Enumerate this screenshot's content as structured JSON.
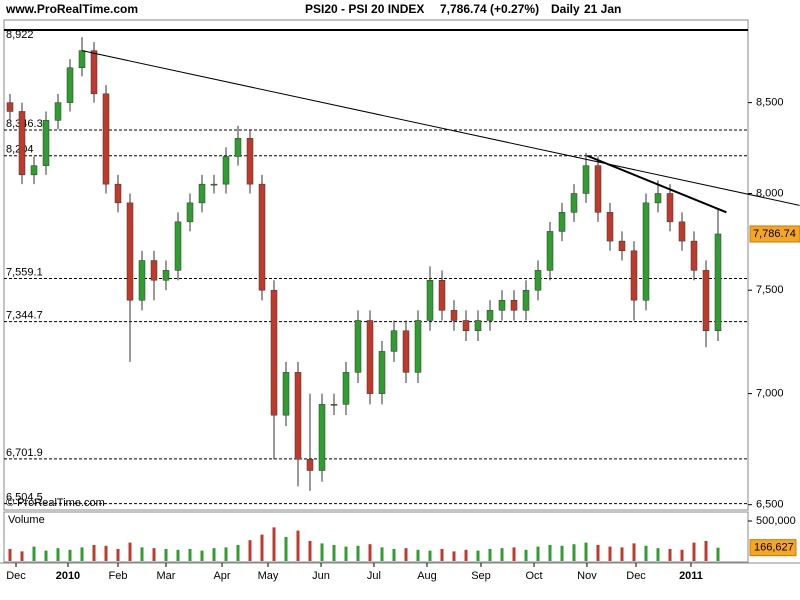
{
  "header": {
    "site": "www.ProRealTime.com",
    "symbol": "PSI20 - PSI 20 INDEX",
    "quote": "7,786.74 (+0.27%)",
    "period": "Daily",
    "date": "21 Jan"
  },
  "chart_data": [
    {
      "type": "candlestick",
      "log_scale": true,
      "watermark": "© ProRealTime.com",
      "up_color": "#2e9e2e",
      "down_color": "#c0392b",
      "xlim": [
        0,
        62
      ],
      "xticks": [
        {
          "value": 1.0,
          "label": "Dec"
        },
        {
          "value": 5.33,
          "label": "2010"
        },
        {
          "value": 9.5,
          "label": "Feb"
        },
        {
          "value": 13.5,
          "label": "Mar"
        },
        {
          "value": 18.17,
          "label": "Apr"
        },
        {
          "value": 22.0,
          "label": "May"
        },
        {
          "value": 26.42,
          "label": "Jun"
        },
        {
          "value": 30.83,
          "label": "Jul"
        },
        {
          "value": 35.25,
          "label": "Aug"
        },
        {
          "value": 39.75,
          "label": "Sep"
        },
        {
          "value": 44.17,
          "label": "Oct"
        },
        {
          "value": 48.58,
          "label": "Nov"
        },
        {
          "value": 52.67,
          "label": "Dec"
        },
        {
          "value": 57.25,
          "label": "2011"
        }
      ],
      "ylim": [
        6490,
        8922
      ],
      "yticks": [
        {
          "value": 6500,
          "label": "6,500"
        },
        {
          "value": 7000,
          "label": "7,000"
        },
        {
          "value": 7500,
          "label": "7,500"
        },
        {
          "value": 8000,
          "label": "8,000"
        },
        {
          "value": 8500,
          "label": "8,500"
        }
      ],
      "levels": [
        {
          "value": 8922,
          "label": "8,922"
        },
        {
          "value": 8346.3,
          "label": "8,346.3"
        },
        {
          "value": 8204,
          "label": "8,204"
        },
        {
          "value": 7559.1,
          "label": "7,559.1"
        },
        {
          "value": 7344.7,
          "label": "7,344.7"
        },
        {
          "value": 6701.9,
          "label": "6,701.9"
        },
        {
          "value": 6504.5,
          "label": "6,504.5"
        }
      ],
      "last": {
        "value": 7786.74,
        "label": "7,786.74"
      },
      "trendlines": [
        {
          "x": [
            6.5,
            66.3
          ],
          "y": [
            8800,
            7937
          ]
        },
        {
          "x": [
            48.6,
            60.2
          ],
          "y": [
            8204,
            7900
          ]
        }
      ],
      "x": [
        0.5,
        1.5,
        2.5,
        3.5,
        4.5,
        5.5,
        6.5,
        7.5,
        8.5,
        9.5,
        10.5,
        11.5,
        12.5,
        13.5,
        14.5,
        15.5,
        16.5,
        17.5,
        18.5,
        19.5,
        20.5,
        21.5,
        22.5,
        23.5,
        24.5,
        25.5,
        26.5,
        27.5,
        28.5,
        29.5,
        30.5,
        31.5,
        32.5,
        33.5,
        34.5,
        35.5,
        36.5,
        37.5,
        38.5,
        39.5,
        40.5,
        41.5,
        42.5,
        43.5,
        44.5,
        45.5,
        46.5,
        47.5,
        48.5,
        49.5,
        50.5,
        51.5,
        52.5,
        53.5,
        54.5,
        55.5,
        56.5,
        57.5,
        58.5,
        59.5
      ],
      "open": [
        8500,
        8450,
        8100,
        8150,
        8400,
        8500,
        8700,
        8800,
        8550,
        8050,
        7950,
        7450,
        7650,
        7550,
        7600,
        7850,
        7950,
        8050,
        8050,
        8200,
        8300,
        8050,
        7500,
        6900,
        7100,
        6700,
        6650,
        6950,
        6950,
        7100,
        7350,
        7000,
        7200,
        7300,
        7100,
        7350,
        7550,
        7400,
        7350,
        7300,
        7350,
        7400,
        7450,
        7400,
        7500,
        7600,
        7800,
        7900,
        8000,
        8150,
        7900,
        7750,
        7700,
        7450,
        7950,
        8000,
        7850,
        7750,
        7600,
        7300
      ],
      "high": [
        8550,
        8500,
        8200,
        8450,
        8550,
        8750,
        8880,
        8850,
        8600,
        8100,
        8000,
        7700,
        7700,
        7650,
        7900,
        8000,
        8100,
        8100,
        8250,
        8370,
        8350,
        8100,
        7550,
        7150,
        7150,
        7000,
        7000,
        7000,
        7150,
        7400,
        7400,
        7250,
        7350,
        7350,
        7400,
        7620,
        7600,
        7450,
        7400,
        7400,
        7450,
        7500,
        7500,
        7550,
        7650,
        7850,
        7950,
        8050,
        8220,
        8200,
        7950,
        7800,
        7750,
        8000,
        8070,
        8050,
        7900,
        7800,
        7650,
        7920
      ],
      "low": [
        8400,
        8050,
        8050,
        8100,
        8350,
        8450,
        8650,
        8500,
        8000,
        7900,
        7150,
        7400,
        7450,
        7500,
        7550,
        7800,
        7900,
        8000,
        8000,
        8150,
        8000,
        7450,
        6700,
        6850,
        6580,
        6560,
        6600,
        6900,
        6900,
        7050,
        6950,
        6950,
        7150,
        7050,
        7050,
        7300,
        7350,
        7300,
        7250,
        7250,
        7300,
        7350,
        7350,
        7350,
        7450,
        7550,
        7750,
        7850,
        7950,
        7850,
        7700,
        7650,
        7350,
        7400,
        7900,
        7800,
        7700,
        7550,
        7220,
        7250
      ],
      "close": [
        8450,
        8100,
        8150,
        8400,
        8500,
        8700,
        8800,
        8550,
        8050,
        7950,
        7450,
        7650,
        7550,
        7600,
        7850,
        7950,
        8050,
        8050,
        8200,
        8300,
        8050,
        7500,
        6900,
        7100,
        6700,
        6650,
        6950,
        6950,
        7100,
        7350,
        7000,
        7200,
        7300,
        7100,
        7350,
        7550,
        7400,
        7350,
        7300,
        7350,
        7400,
        7450,
        7400,
        7500,
        7600,
        7800,
        7900,
        8000,
        8150,
        7900,
        7750,
        7700,
        7450,
        7950,
        8000,
        7850,
        7750,
        7600,
        7300,
        7786.74
      ]
    },
    {
      "type": "volume",
      "title": "Volume",
      "title_color": "#2e9e2e",
      "ylim": [
        0,
        600000
      ],
      "yticks": [
        {
          "value": 500000,
          "label": "500,000"
        }
      ],
      "last": {
        "value": 166627,
        "label": "166,627"
      },
      "values": [
        150000,
        120000,
        180000,
        130000,
        160000,
        140000,
        170000,
        200000,
        190000,
        150000,
        230000,
        170000,
        160000,
        150000,
        140000,
        150000,
        130000,
        160000,
        170000,
        200000,
        260000,
        330000,
        420000,
        300000,
        380000,
        250000,
        220000,
        200000,
        180000,
        190000,
        210000,
        170000,
        150000,
        160000,
        140000,
        130000,
        150000,
        120000,
        140000,
        130000,
        150000,
        160000,
        170000,
        140000,
        180000,
        200000,
        190000,
        210000,
        230000,
        200000,
        180000,
        170000,
        220000,
        190000,
        160000,
        150000,
        140000,
        230000,
        250000,
        166627
      ]
    }
  ]
}
